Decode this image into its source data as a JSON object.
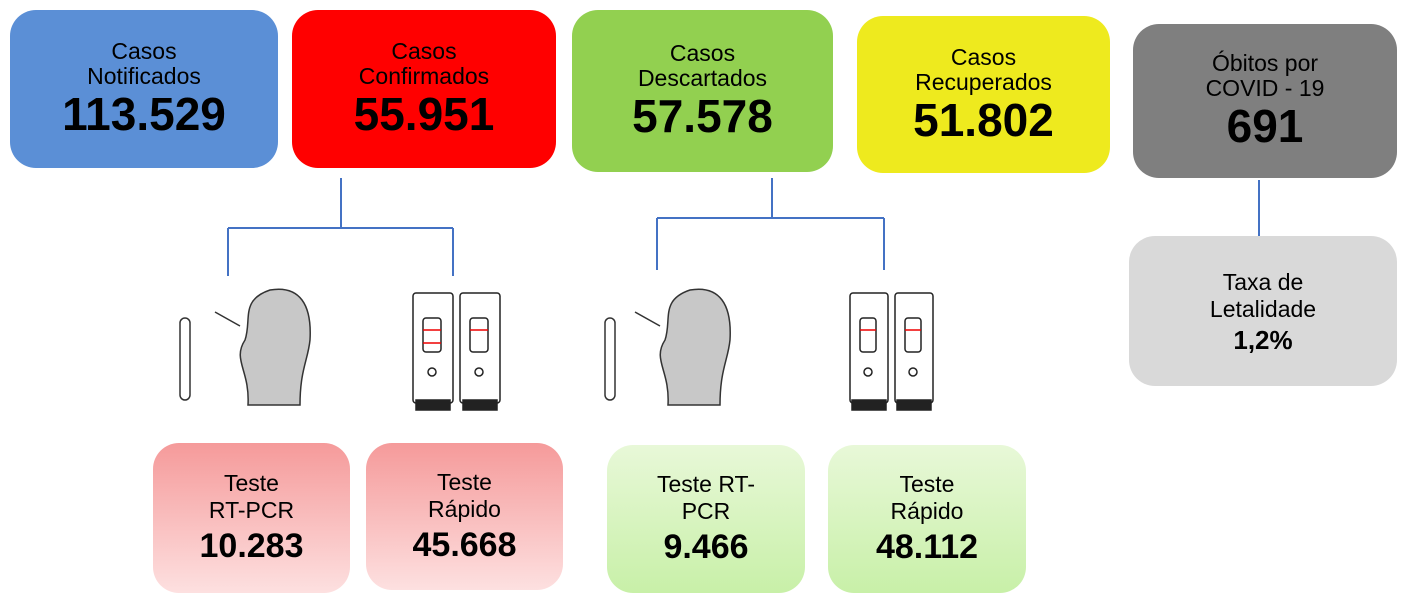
{
  "cards": [
    {
      "label_lines": [
        "Casos",
        "Notificados"
      ],
      "value": "113.529"
    },
    {
      "label_lines": [
        "Casos",
        "Confirmados"
      ],
      "value": "55.951"
    },
    {
      "label_lines": [
        "Casos",
        "Descartados"
      ],
      "value": "57.578"
    },
    {
      "label_lines": [
        "Casos",
        "Recuperados"
      ],
      "value": "51.802"
    },
    {
      "label_lines": [
        "Óbitos por",
        "COVID - 19"
      ],
      "value": "691"
    }
  ],
  "lethality": {
    "label_lines": [
      "Taxa de",
      "Letalidade"
    ],
    "value": "1,2%"
  },
  "tests": [
    {
      "label_lines": [
        "Teste",
        "RT-PCR"
      ],
      "value": "10.283"
    },
    {
      "label_lines": [
        "Teste",
        "Rápido"
      ],
      "value": "45.668"
    },
    {
      "label_lines": [
        "Teste RT-",
        "PCR"
      ],
      "value": "9.466"
    },
    {
      "label_lines": [
        "Teste",
        "Rápido"
      ],
      "value": "48.112"
    }
  ]
}
